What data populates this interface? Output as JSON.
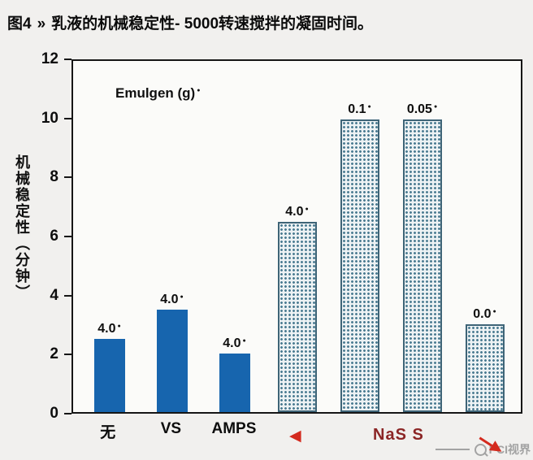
{
  "header": {
    "figure_label": "图4",
    "chevron": "»",
    "title": "乳液的机械稳定性- 5000转速搅拌的凝固时间。"
  },
  "chart_data": {
    "type": "bar",
    "title": "乳液的机械稳定性- 5000转速搅拌的凝固时间",
    "annotation": "Emulgen (g)",
    "annotation_marker": "●",
    "bar_label_marker": "●",
    "ylabel": "机械稳定性（分钟）",
    "xlabel": "",
    "ylim": [
      0,
      12
    ],
    "yticks": [
      0,
      2,
      4,
      6,
      8,
      10,
      12
    ],
    "grid": false,
    "legend": false,
    "bars": [
      {
        "category": "无",
        "emulgen_g": "4.0",
        "value": 2.5,
        "style": "solid"
      },
      {
        "category": "VS",
        "emulgen_g": "4.0",
        "value": 3.5,
        "style": "solid"
      },
      {
        "category": "AMPS",
        "emulgen_g": "4.0",
        "value": 2.0,
        "style": "solid"
      },
      {
        "category": "",
        "emulgen_g": "4.0",
        "value": 6.5,
        "style": "hatched"
      },
      {
        "category": "",
        "emulgen_g": "0.1",
        "value": 10.0,
        "style": "hatched"
      },
      {
        "category": "",
        "emulgen_g": "0.05",
        "value": 10.0,
        "style": "hatched"
      },
      {
        "category": "",
        "emulgen_g": "0.0",
        "value": 3.0,
        "style": "hatched"
      }
    ],
    "x_annotations": {
      "left_arrow": "◀",
      "group_label": "NaS S"
    },
    "colors": {
      "solid_bar": "#1765ae",
      "hatch_dot": "#4a7b91",
      "hatch_bg": "#edf2f4",
      "hatch_border": "#3e6477",
      "accent_red": "#d42a1e",
      "nas_label_color": "#8b2525",
      "watermark_gray": "#a3a3a3"
    }
  },
  "watermark": {
    "text": "PCI视界"
  }
}
